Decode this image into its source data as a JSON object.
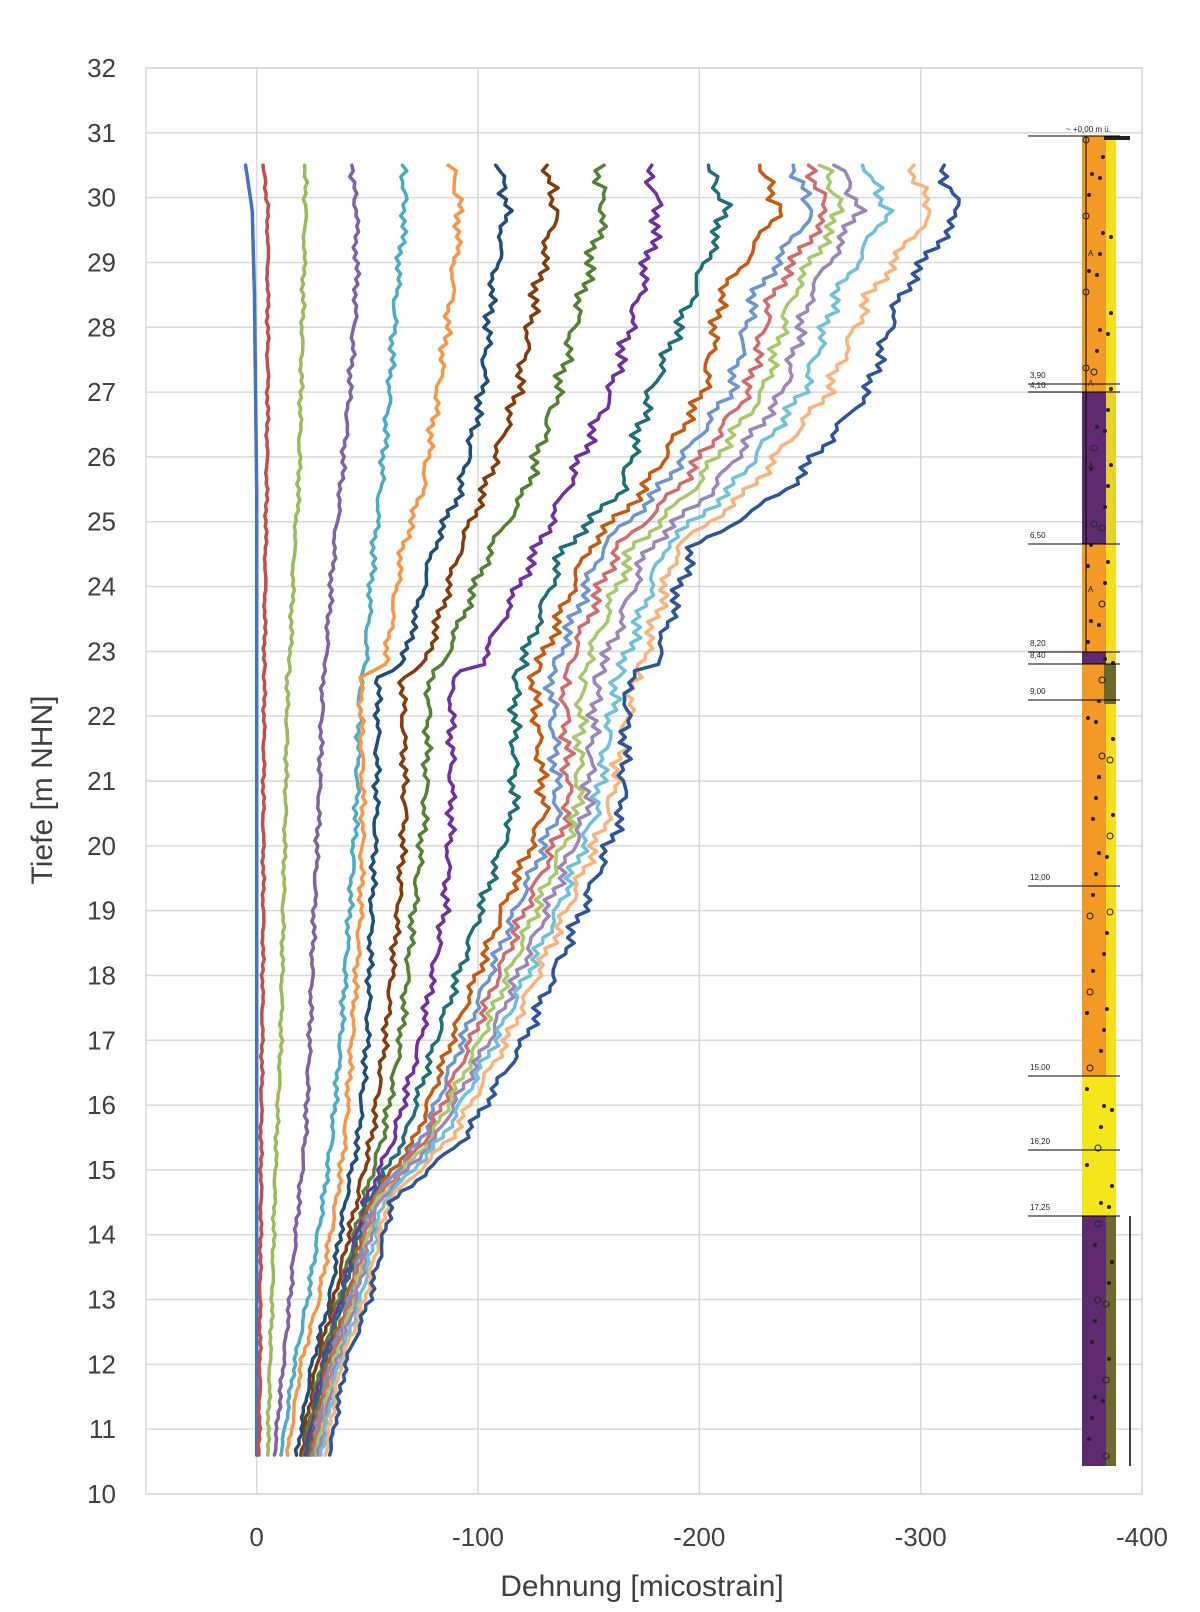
{
  "chart_data": {
    "type": "line",
    "xlabel": "Dehnung [micostrain]",
    "ylabel": "Tiefe [m NHN]",
    "xlim": [
      50,
      -400
    ],
    "ylim": [
      10,
      32
    ],
    "x_ticks": [
      "0",
      "-100",
      "-200",
      "-300",
      "-400"
    ],
    "x_tick_values": [
      0,
      -100,
      -200,
      -300,
      -400
    ],
    "y_ticks": [
      "10",
      "11",
      "12",
      "13",
      "14",
      "15",
      "16",
      "17",
      "18",
      "19",
      "20",
      "21",
      "22",
      "23",
      "24",
      "25",
      "26",
      "27",
      "28",
      "29",
      "30",
      "31",
      "32"
    ],
    "grid": true,
    "legend": "none",
    "depth": [
      30.5,
      29.8,
      28.5,
      27.0,
      25.5,
      24.6,
      22.8,
      22.6,
      20.5,
      19.0,
      17.0,
      15.5,
      14.5,
      13.0,
      12.0,
      10.6
    ],
    "series": [
      {
        "color": "#4472c4",
        "values": [
          5,
          2,
          1,
          0.5,
          0,
          0,
          0,
          0,
          0,
          0,
          0,
          0,
          0,
          0,
          0,
          0
        ]
      },
      {
        "color": "#c0504d",
        "values": [
          -3,
          -5,
          -5,
          -5,
          -4.5,
          -4,
          -3.5,
          -3.5,
          -3,
          -3,
          -2.5,
          -2,
          -2,
          -1.5,
          -1.5,
          -1
        ]
      },
      {
        "color": "#9bbb59",
        "values": [
          -22,
          -22,
          -21,
          -20,
          -19,
          -17,
          -15,
          -14,
          -13,
          -12,
          -11,
          -9,
          -8,
          -7,
          -6,
          -5
        ]
      },
      {
        "color": "#8064a2",
        "values": [
          -43,
          -45,
          -45,
          -42,
          -38,
          -35,
          -31,
          -30,
          -28,
          -26,
          -24,
          -22,
          -19,
          -15,
          -12,
          -8
        ]
      },
      {
        "color": "#4bacc6",
        "values": [
          -66,
          -67,
          -63,
          -60,
          -56,
          -53,
          -49,
          -47,
          -45,
          -42,
          -38,
          -34,
          -30,
          -23,
          -17,
          -11
        ]
      },
      {
        "color": "#f79646",
        "values": [
          -88,
          -92,
          -88,
          -82,
          -75,
          -66,
          -58,
          -47,
          -48,
          -47,
          -43,
          -40,
          -36,
          -28,
          -20,
          -14
        ]
      },
      {
        "color": "#1f4e79",
        "values": [
          -110,
          -113,
          -106,
          -102,
          -92,
          -80,
          -66,
          -55,
          -54,
          -52,
          -50,
          -46,
          -40,
          -33,
          -25,
          -18
        ]
      },
      {
        "color": "#843c0c",
        "values": [
          -131,
          -135,
          -126,
          -118,
          -103,
          -92,
          -76,
          -66,
          -67,
          -64,
          -58,
          -52,
          -45,
          -35,
          -27,
          -20
        ]
      },
      {
        "color": "#548235",
        "values": [
          -154,
          -157,
          -147,
          -136,
          -122,
          -106,
          -84,
          -78,
          -76,
          -71,
          -65,
          -57,
          -48,
          -37,
          -29,
          -21
        ]
      },
      {
        "color": "#7030a0",
        "values": [
          -176,
          -182,
          -173,
          -160,
          -140,
          -127,
          -101,
          -88,
          -88,
          -85,
          -74,
          -62,
          -49,
          -38,
          -30,
          -22
        ]
      },
      {
        "color": "#1f6f78",
        "values": [
          -204,
          -212,
          -197,
          -178,
          -165,
          -139,
          -120,
          -117,
          -116,
          -101,
          -81,
          -67,
          -50,
          -39,
          -31,
          -23
        ]
      },
      {
        "color": "#c55a11",
        "values": [
          -228,
          -236,
          -210,
          -202,
          -175,
          -150,
          -128,
          -125,
          -130,
          -111,
          -88,
          -72,
          -51,
          -41,
          -32,
          -24
        ]
      },
      {
        "color": "#6e94d0",
        "values": [
          -242,
          -251,
          -225,
          -214,
          -182,
          -156,
          -135,
          -133,
          -136,
          -117,
          -93,
          -75,
          -52,
          -42,
          -33,
          -25
        ]
      },
      {
        "color": "#d06c6c",
        "values": [
          -249,
          -258,
          -233,
          -222,
          -190,
          -163,
          -141,
          -139,
          -141,
          -121,
          -97,
          -77,
          -53,
          -43,
          -34,
          -26
        ]
      },
      {
        "color": "#a9c86c",
        "values": [
          -256,
          -264,
          -242,
          -229,
          -197,
          -170,
          -149,
          -147,
          -145,
          -126,
          -101,
          -79,
          -54,
          -44,
          -35,
          -27
        ]
      },
      {
        "color": "#9b86ba",
        "values": [
          -264,
          -272,
          -250,
          -238,
          -206,
          -177,
          -157,
          -154,
          -149,
          -131,
          -105,
          -81,
          -55,
          -45,
          -36,
          -28
        ]
      },
      {
        "color": "#6fc0d8",
        "values": [
          -275,
          -285,
          -262,
          -247,
          -214,
          -184,
          -166,
          -163,
          -153,
          -136,
          -108,
          -84,
          -57,
          -47,
          -37,
          -29
        ]
      },
      {
        "color": "#fab37a",
        "values": [
          -295,
          -305,
          -277,
          -258,
          -223,
          -190,
          -174,
          -171,
          -159,
          -140,
          -113,
          -88,
          -59,
          -49,
          -38,
          -31
        ]
      },
      {
        "color": "#2e5597",
        "values": [
          -308,
          -318,
          -291,
          -276,
          -240,
          -197,
          -180,
          -168,
          -165,
          -147,
          -121,
          -94,
          -61,
          -51,
          -40,
          -33
        ]
      }
    ]
  },
  "borehole_log": {
    "top_label": "~ +0,00 m ü.",
    "depth_labels": [
      "3,90",
      "4,10",
      "6,50",
      "8,20",
      "8,40",
      "9,00",
      "12,00",
      "15,00",
      "16,20",
      "17,25"
    ],
    "symbol_label": "A",
    "colors": {
      "orange": "#f39a24",
      "yellow": "#f5e61c",
      "purple": "#5e2a70",
      "olive": "#6b6a2c"
    }
  }
}
